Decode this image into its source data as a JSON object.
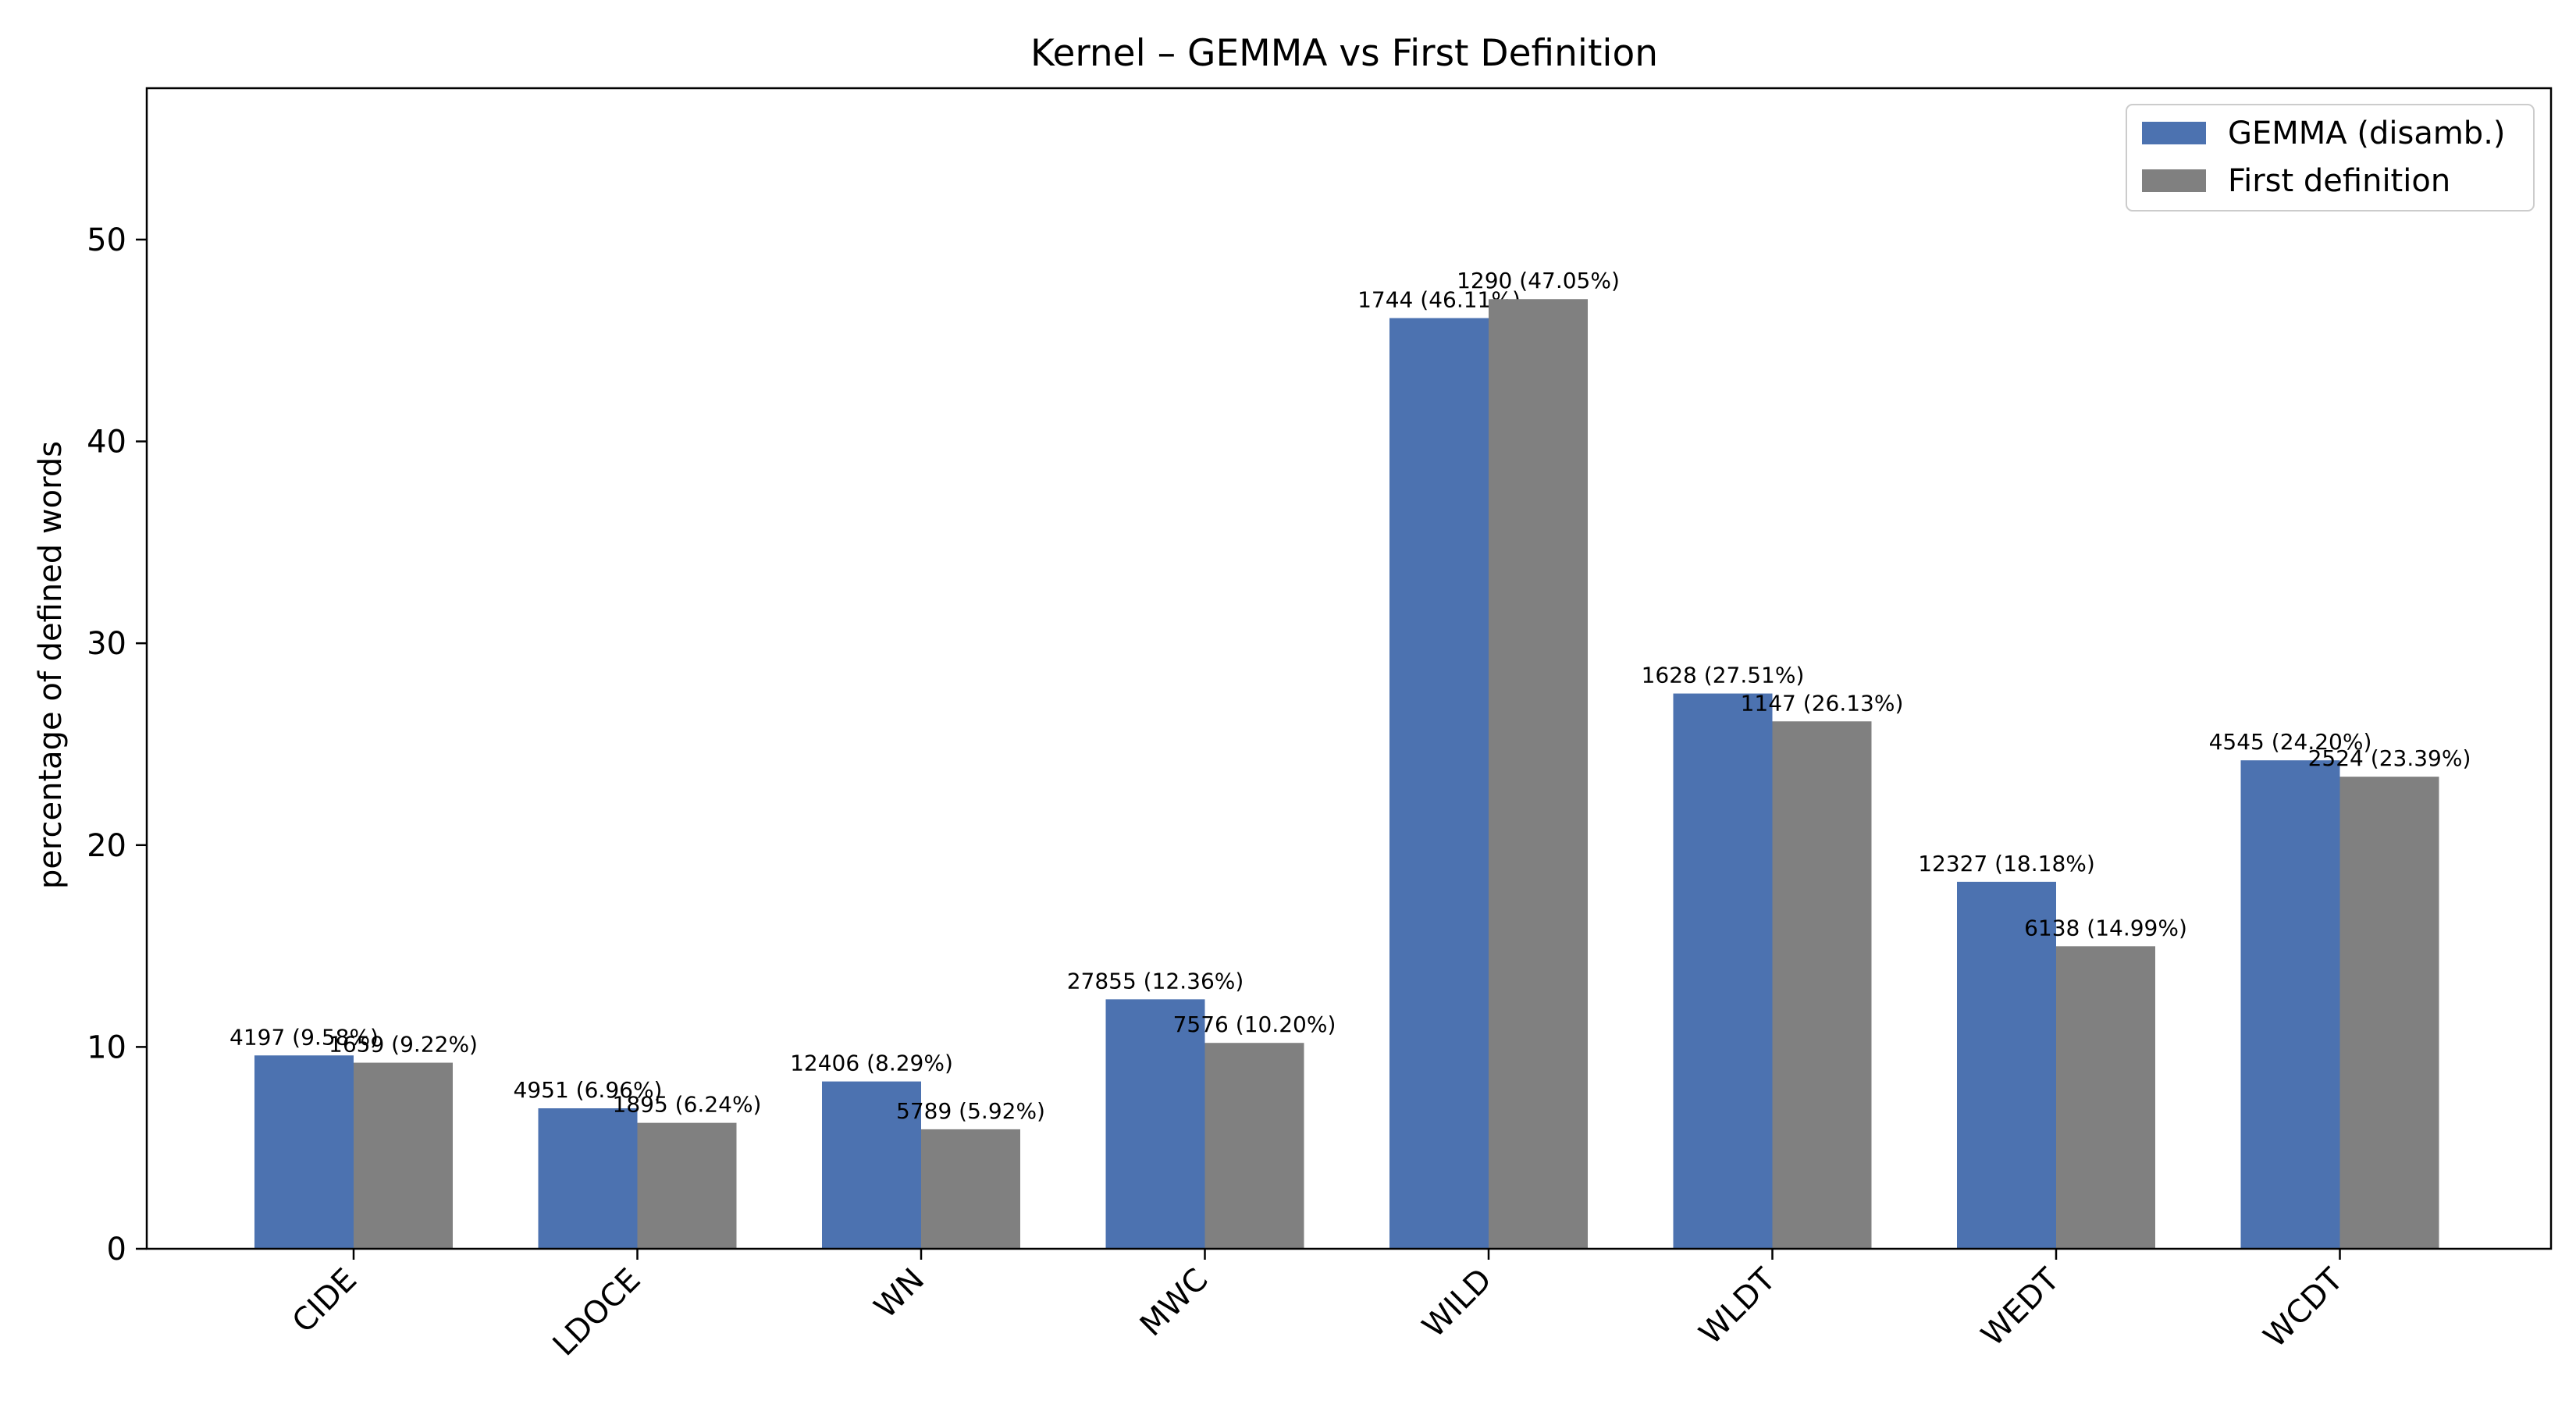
{
  "chart_data": {
    "type": "bar",
    "title": "Kernel – GEMMA vs First Definition",
    "xlabel": "",
    "ylabel": "percentage of defined words",
    "ylim": [
      0,
      57.5
    ],
    "yticks": [
      0,
      10,
      20,
      30,
      40,
      50
    ],
    "grid": false,
    "legend_position": "top-right",
    "categories": [
      "CIDE",
      "LDOCE",
      "WN",
      "MWC",
      "WILD",
      "WLDT",
      "WEDT",
      "WCDT"
    ],
    "series": [
      {
        "name": "GEMMA (disamb.)",
        "color": "#4c72b0",
        "values": [
          9.58,
          6.96,
          8.29,
          12.36,
          46.11,
          27.51,
          18.18,
          24.2
        ],
        "labels": [
          "4197 (9.58%)",
          "4951 (6.96%)",
          "12406 (8.29%)",
          "27855 (12.36%)",
          "1744 (46.11%)",
          "1628 (27.51%)",
          "12327 (18.18%)",
          "4545 (24.20%)"
        ]
      },
      {
        "name": "First definition",
        "color": "#808080",
        "values": [
          9.22,
          6.24,
          5.92,
          10.2,
          47.05,
          26.13,
          14.99,
          23.39
        ],
        "labels": [
          "1659 (9.22%)",
          "1895 (6.24%)",
          "5789 (5.92%)",
          "7576 (10.20%)",
          "1290 (47.05%)",
          "1147 (26.13%)",
          "6138 (14.99%)",
          "2524 (23.39%)"
        ]
      }
    ]
  }
}
